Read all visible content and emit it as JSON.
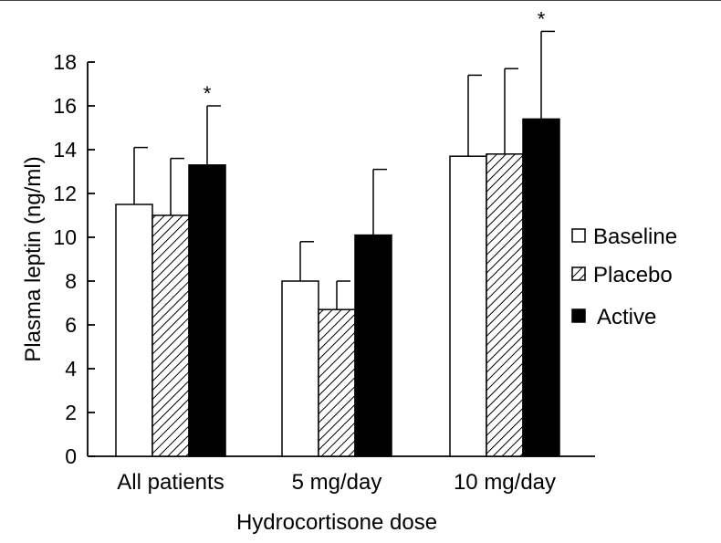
{
  "chart_data": {
    "type": "bar",
    "title": "",
    "xlabel": "Hydrocortisone dose",
    "ylabel": "Plasma leptin (ng/ml)",
    "ylim": [
      0,
      18
    ],
    "yticks": [
      0,
      2,
      4,
      6,
      8,
      10,
      12,
      14,
      16,
      18
    ],
    "categories": [
      "All patients",
      "5 mg/day",
      "10 mg/day"
    ],
    "series": [
      {
        "name": "Baseline",
        "fill": "white",
        "values": [
          11.5,
          8.0,
          13.7
        ],
        "errors": [
          2.6,
          1.8,
          3.7
        ]
      },
      {
        "name": "Placebo",
        "fill": "hatched",
        "values": [
          11.0,
          6.7,
          13.8
        ],
        "errors": [
          2.6,
          1.3,
          3.9
        ]
      },
      {
        "name": "Active",
        "fill": "black",
        "values": [
          13.3,
          10.1,
          15.4
        ],
        "errors": [
          2.7,
          3.0,
          4.0
        ]
      }
    ],
    "significance": [
      {
        "category": "All patients",
        "series": "Active",
        "label": "*"
      },
      {
        "category": "10 mg/day",
        "series": "Active",
        "label": "*"
      }
    ],
    "legend_position": "right",
    "grid": false
  },
  "colors": {
    "bar_outline": "#000000",
    "active_fill": "#000000",
    "baseline_fill": "#ffffff"
  }
}
